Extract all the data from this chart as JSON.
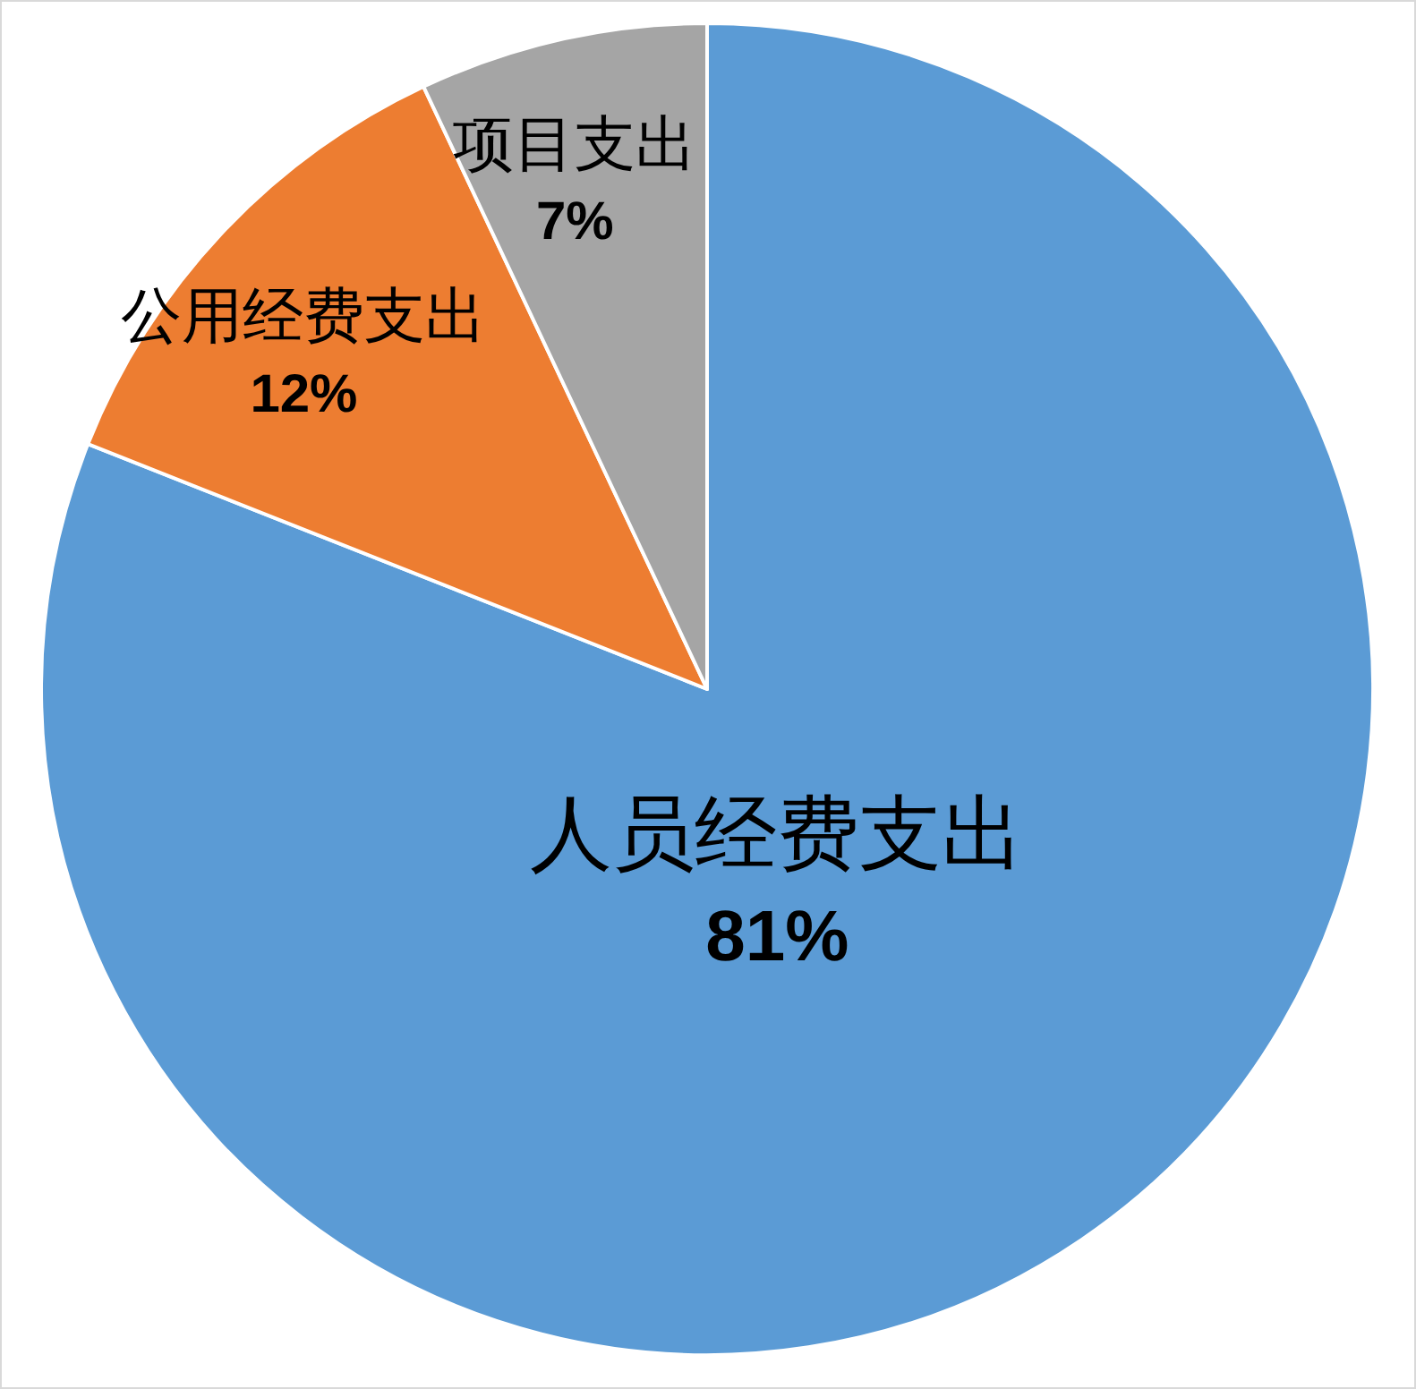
{
  "chart_data": {
    "type": "pie",
    "categories": [
      "人员经费支出",
      "公用经费支出",
      "项目支出"
    ],
    "values": [
      81,
      12,
      7
    ],
    "value_labels": [
      "81%",
      "12%",
      "7%"
    ],
    "colors": [
      "#5b9bd5",
      "#ed7d31",
      "#a5a5a5"
    ]
  }
}
